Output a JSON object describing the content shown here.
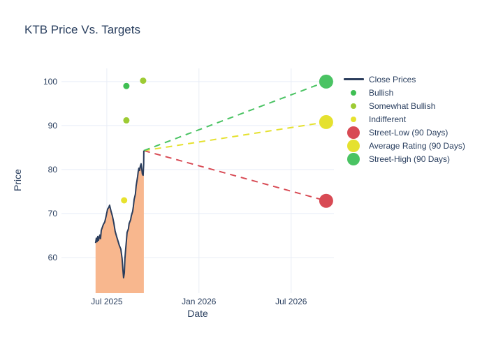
{
  "chart_data": {
    "type": "line+scatter",
    "title": "KTB Price Vs. Targets",
    "xlabel": "Date",
    "ylabel": "Price",
    "x_range": [
      2025.254,
      2026.732
    ],
    "y_range": [
      51.9,
      103.0
    ],
    "x_ticks": [
      {
        "value": 2025.5,
        "label": "Jul 2025"
      },
      {
        "value": 2026.0,
        "label": "Jan 2026"
      },
      {
        "value": 2026.5,
        "label": "Jul 2026"
      }
    ],
    "y_ticks": [
      60,
      70,
      80,
      90,
      100
    ],
    "grid": true,
    "legend_position": "right",
    "series": {
      "close_prices": {
        "id": "close-prices",
        "name": "Close Prices",
        "color": "#2b3d5c",
        "fill_color": "#f8b78e",
        "points": [
          [
            2025.439,
            63.3
          ],
          [
            2025.443,
            64.4
          ],
          [
            2025.447,
            63.6
          ],
          [
            2025.451,
            64.8
          ],
          [
            2025.455,
            63.9
          ],
          [
            2025.462,
            65.1
          ],
          [
            2025.466,
            64.3
          ],
          [
            2025.47,
            66.2
          ],
          [
            2025.481,
            67.5
          ],
          [
            2025.489,
            68.1
          ],
          [
            2025.496,
            69.4
          ],
          [
            2025.504,
            71.0
          ],
          [
            2025.511,
            71.4
          ],
          [
            2025.515,
            71.9
          ],
          [
            2025.523,
            70.5
          ],
          [
            2025.53,
            69.5
          ],
          [
            2025.538,
            67.9
          ],
          [
            2025.545,
            66.0
          ],
          [
            2025.553,
            64.8
          ],
          [
            2025.561,
            63.7
          ],
          [
            2025.568,
            62.7
          ],
          [
            2025.576,
            61.9
          ],
          [
            2025.583,
            59.7
          ],
          [
            2025.587,
            57.3
          ],
          [
            2025.591,
            55.4
          ],
          [
            2025.595,
            56.5
          ],
          [
            2025.598,
            59.7
          ],
          [
            2025.602,
            61.7
          ],
          [
            2025.606,
            63.7
          ],
          [
            2025.61,
            65.7
          ],
          [
            2025.617,
            66.5
          ],
          [
            2025.621,
            67.7
          ],
          [
            2025.629,
            68.6
          ],
          [
            2025.633,
            69.5
          ],
          [
            2025.64,
            70.5
          ],
          [
            2025.644,
            71.6
          ],
          [
            2025.648,
            73.2
          ],
          [
            2025.655,
            74.4
          ],
          [
            2025.659,
            76.3
          ],
          [
            2025.667,
            78.4
          ],
          [
            2025.67,
            79.5
          ],
          [
            2025.674,
            80.3
          ],
          [
            2025.678,
            79.8
          ],
          [
            2025.682,
            80.8
          ],
          [
            2025.686,
            81.3
          ],
          [
            2025.689,
            80.3
          ],
          [
            2025.693,
            79.0
          ],
          [
            2025.697,
            78.7
          ],
          [
            2025.7,
            81.3
          ],
          [
            2025.701,
            84.3
          ]
        ]
      },
      "ratings": [
        {
          "id": "bullish",
          "name": "Bullish",
          "color": "#3fbf53",
          "points": [
            [
              2025.606,
              99.0
            ]
          ]
        },
        {
          "id": "somewhat-bullish",
          "name": "Somewhat Bullish",
          "color": "#9dcb33",
          "points": [
            [
              2025.697,
              100.2
            ],
            [
              2025.606,
              91.2
            ]
          ]
        },
        {
          "id": "indifferent",
          "name": "Indifferent",
          "color": "#e7e22e",
          "points": [
            [
              2025.594,
              73.0
            ]
          ]
        }
      ],
      "forecasts": [
        {
          "id": "street-low",
          "name": "Street-Low (90 Days)",
          "color": "#d84a54",
          "from": [
            2025.701,
            84.3
          ],
          "to": [
            2026.69,
            72.9
          ]
        },
        {
          "id": "average-rating",
          "name": "Average Rating (90 Days)",
          "color": "#e5e12f",
          "from": [
            2025.701,
            84.3
          ],
          "to": [
            2026.69,
            90.8
          ]
        },
        {
          "id": "street-high",
          "name": "Street-High (90 Days)",
          "color": "#4ac363",
          "from": [
            2025.701,
            84.3
          ],
          "to": [
            2026.69,
            100.0
          ]
        }
      ]
    }
  },
  "legend": {
    "items": [
      {
        "id": "close-prices",
        "label": "Close Prices",
        "marker": "line",
        "color": "#2b3d5c"
      },
      {
        "id": "bullish",
        "label": "Bullish",
        "marker": "dot-sm",
        "color": "#3fbf53"
      },
      {
        "id": "somewhat-bullish",
        "label": "Somewhat Bullish",
        "marker": "dot-sm",
        "color": "#9dcb33"
      },
      {
        "id": "indifferent",
        "label": "Indifferent",
        "marker": "dot-sm",
        "color": "#e7e22e"
      },
      {
        "id": "street-low",
        "label": "Street-Low (90 Days)",
        "marker": "dot-lg",
        "color": "#d84a54"
      },
      {
        "id": "average-rating",
        "label": "Average Rating (90 Days)",
        "marker": "dot-lg",
        "color": "#e5e12f"
      },
      {
        "id": "street-high",
        "label": "Street-High (90 Days)",
        "marker": "dot-lg",
        "color": "#4ac363"
      }
    ]
  },
  "colors": {
    "background": "#ffffff",
    "grid": "#e8edf6",
    "text": "#2a3f5f"
  }
}
